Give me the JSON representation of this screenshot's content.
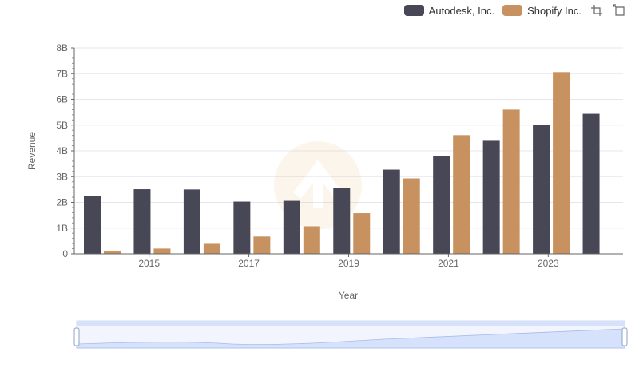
{
  "legend": {
    "series_a": "Autodesk, Inc.",
    "series_b": "Shopify Inc."
  },
  "icons": {
    "zoom": "zoom-icon",
    "restore": "restore-icon"
  },
  "colors": {
    "autodesk": "#484755",
    "shopify": "#c79260",
    "grid": "#e6e6ef",
    "slider": "#d6e2fb"
  },
  "chart_data": {
    "type": "bar",
    "xlabel": "Year",
    "ylabel": "Revenue",
    "ylim": [
      0,
      8000000000
    ],
    "y_ticks": [
      "0",
      "1B",
      "2B",
      "3B",
      "4B",
      "5B",
      "6B",
      "7B",
      "8B"
    ],
    "x_tick_labels": [
      "2015",
      "2017",
      "2019",
      "2021",
      "2023"
    ],
    "categories": [
      "2014",
      "2015",
      "2016",
      "2017",
      "2018",
      "2019",
      "2020",
      "2021",
      "2022",
      "2023",
      "2024"
    ],
    "series": [
      {
        "name": "Autodesk, Inc.",
        "values": [
          2250000000,
          2510000000,
          2500000000,
          2030000000,
          2060000000,
          2570000000,
          3270000000,
          3790000000,
          4390000000,
          5010000000,
          5440000000
        ]
      },
      {
        "name": "Shopify Inc.",
        "values": [
          105000000,
          205000000,
          389000000,
          673000000,
          1070000000,
          1580000000,
          2930000000,
          4610000000,
          5600000000,
          7060000000,
          null
        ]
      }
    ],
    "grid": true,
    "legend_position": "top-right",
    "data_zoom": {
      "start": 0,
      "end": 100
    }
  }
}
